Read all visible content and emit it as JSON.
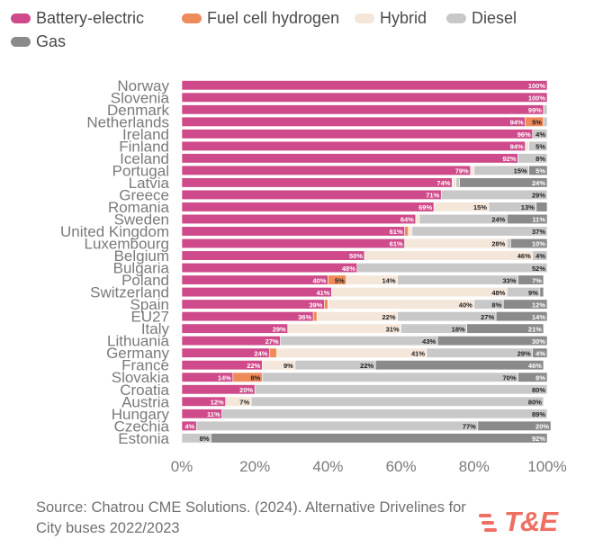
{
  "legend": [
    {
      "label": "Battery-electric",
      "color": "#cf4a8a"
    },
    {
      "label": "Fuel cell hydrogen",
      "color": "#ef8a5a"
    },
    {
      "label": "Hybrid",
      "color": "#f5e6da"
    },
    {
      "label": "Diesel",
      "color": "#c8c8c8"
    },
    {
      "label": "Gas",
      "color": "#8a8a8a"
    }
  ],
  "chart_data": {
    "type": "bar",
    "orientation": "horizontal",
    "stacked": true,
    "title": "",
    "xlabel": "",
    "ylabel": "",
    "xlim": [
      0,
      100
    ],
    "x_ticks": [
      "0%",
      "20%",
      "40%",
      "60%",
      "80%",
      "100%"
    ],
    "categories": [
      "Norway",
      "Slovenia",
      "Denmark",
      "Netherlands",
      "Ireland",
      "Finland",
      "Iceland",
      "Portugal",
      "Latvia",
      "Greece",
      "Romania",
      "Sweden",
      "United Kingdom",
      "Luxembourg",
      "Belgium",
      "Bulgaria",
      "Poland",
      "Switzerland",
      "Spain",
      "EU27",
      "Italy",
      "Lithuania",
      "Germany",
      "France",
      "Slovakia",
      "Croatia",
      "Austria",
      "Hungary",
      "Czechia",
      "Estonia"
    ],
    "series": [
      {
        "name": "Battery-electric",
        "color": "#cf4a8a",
        "label_color": "#ffffff",
        "values": [
          100,
          100,
          99,
          94,
          96,
          94,
          92,
          79,
          74,
          71,
          69,
          64,
          61,
          61,
          50,
          48,
          40,
          41,
          39,
          36,
          29,
          27,
          24,
          22,
          14,
          20,
          12,
          11,
          4,
          0
        ]
      },
      {
        "name": "Fuel cell hydrogen",
        "color": "#ef8a5a",
        "label_color": "#222222",
        "values": [
          0,
          0,
          0,
          5,
          0,
          0,
          0,
          0,
          0,
          0,
          0,
          0,
          1,
          0,
          0,
          0,
          5,
          0,
          1,
          1,
          0,
          0,
          2,
          0,
          8,
          0,
          0,
          0,
          0,
          0
        ]
      },
      {
        "name": "Hybrid",
        "color": "#f5e6da",
        "label_color": "#222222",
        "values": [
          0,
          0,
          0,
          0,
          0,
          1,
          0,
          1,
          1,
          0,
          15,
          1,
          1,
          28,
          46,
          0,
          14,
          48,
          40,
          22,
          31,
          0,
          41,
          9,
          0,
          0,
          7,
          0,
          0,
          0
        ]
      },
      {
        "name": "Diesel",
        "color": "#c8c8c8",
        "label_color": "#222222",
        "values": [
          0,
          0,
          1,
          1,
          4,
          5,
          8,
          15,
          1,
          29,
          13,
          24,
          37,
          1,
          4,
          52,
          33,
          9,
          8,
          27,
          18,
          43,
          29,
          22,
          70,
          80,
          80,
          89,
          77,
          8
        ]
      },
      {
        "name": "Gas",
        "color": "#8a8a8a",
        "label_color": "#ffffff",
        "values": [
          0,
          0,
          0,
          0,
          0,
          0,
          0,
          5,
          24,
          0,
          3,
          11,
          0,
          10,
          0,
          0,
          7,
          1,
          12,
          14,
          21,
          30,
          4,
          46,
          8,
          0,
          0,
          0,
          20,
          92
        ]
      }
    ],
    "data_labels": [
      [
        "100%",
        "",
        "",
        "",
        ""
      ],
      [
        "100%",
        "",
        "",
        "",
        ""
      ],
      [
        "99%",
        "",
        "",
        "",
        ""
      ],
      [
        "94%",
        "5%",
        "",
        "",
        ""
      ],
      [
        "96%",
        "",
        "",
        "4%",
        ""
      ],
      [
        "94%",
        "",
        "",
        "5%",
        ""
      ],
      [
        "92%",
        "",
        "",
        "8%",
        ""
      ],
      [
        "79%",
        "",
        "",
        "15%",
        "5%"
      ],
      [
        "74%",
        "",
        "",
        "",
        "24%"
      ],
      [
        "71%",
        "",
        "",
        "29%",
        ""
      ],
      [
        "69%",
        "",
        "15%",
        "13%",
        ""
      ],
      [
        "64%",
        "",
        "",
        "24%",
        "11%"
      ],
      [
        "61%",
        "",
        "",
        "37%",
        ""
      ],
      [
        "61%",
        "",
        "28%",
        "",
        "10%"
      ],
      [
        "50%",
        "",
        "46%",
        "4%",
        ""
      ],
      [
        "48%",
        "",
        "",
        "52%",
        ""
      ],
      [
        "40%",
        "5%",
        "14%",
        "33%",
        "7%"
      ],
      [
        "41%",
        "",
        "48%",
        "9%",
        ""
      ],
      [
        "39%",
        "",
        "40%",
        "8%",
        "12%"
      ],
      [
        "36%",
        "",
        "22%",
        "27%",
        "14%"
      ],
      [
        "29%",
        "",
        "31%",
        "18%",
        "21%"
      ],
      [
        "27%",
        "",
        "",
        "43%",
        "30%"
      ],
      [
        "24%",
        "",
        "41%",
        "29%",
        "4%"
      ],
      [
        "22%",
        "",
        "9%",
        "22%",
        "46%"
      ],
      [
        "14%",
        "8%",
        "",
        "70%",
        "8%"
      ],
      [
        "20%",
        "",
        "",
        "80%",
        ""
      ],
      [
        "12%",
        "",
        "7%",
        "80%",
        ""
      ],
      [
        "11%",
        "",
        "",
        "89%",
        ""
      ],
      [
        "4%",
        "",
        "",
        "77%",
        "20%"
      ],
      [
        "",
        "",
        "",
        "8%",
        "92%"
      ]
    ]
  },
  "source": "Source: Chatrou CME Solutions. (2024). Alternative Drivelines for City buses 2022/2023",
  "logo": {
    "text": "T&E",
    "color": "#ef6f63"
  }
}
